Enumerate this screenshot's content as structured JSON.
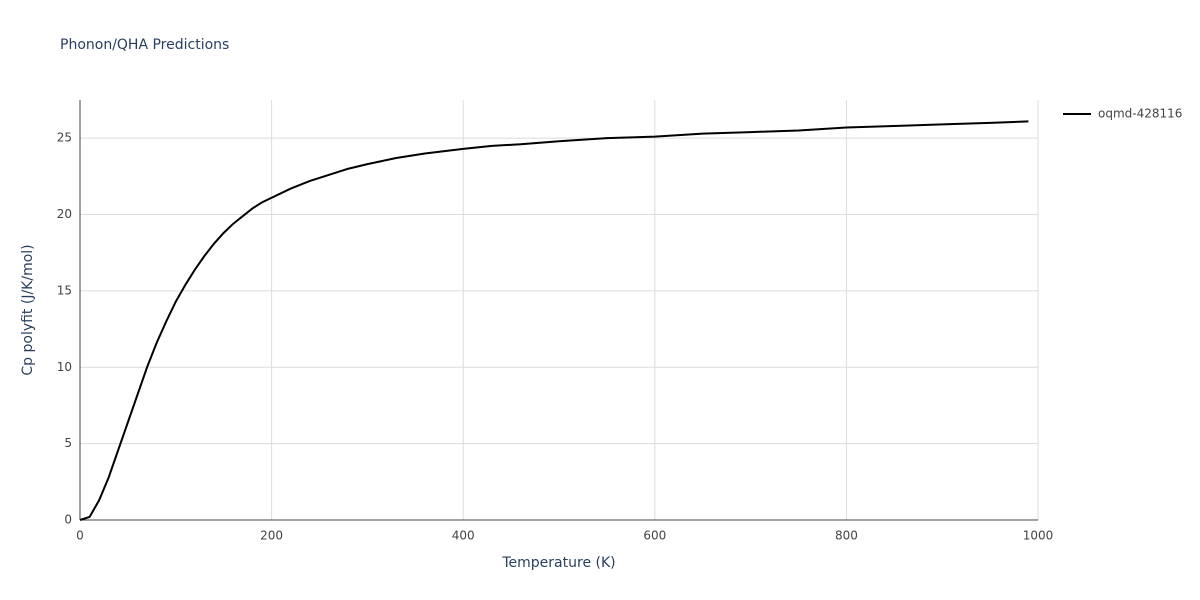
{
  "chart_data": {
    "type": "line",
    "title": "Phonon/QHA Predictions",
    "x_label": "Temperature (K)",
    "y_label": "Cp polyfit (J/K/mol)",
    "x": [
      0,
      10,
      20,
      30,
      40,
      50,
      60,
      70,
      80,
      90,
      100,
      110,
      120,
      130,
      140,
      150,
      160,
      170,
      180,
      190,
      200,
      220,
      240,
      260,
      280,
      300,
      330,
      360,
      400,
      430,
      460,
      500,
      550,
      600,
      650,
      700,
      750,
      800,
      850,
      900,
      950,
      990
    ],
    "series": [
      {
        "name": "oqmd-428116",
        "color": "#000000",
        "values": [
          0,
          0.2,
          1.3,
          2.8,
          4.6,
          6.4,
          8.2,
          10.0,
          11.6,
          13.0,
          14.3,
          15.4,
          16.4,
          17.3,
          18.1,
          18.8,
          19.4,
          19.9,
          20.4,
          20.8,
          21.1,
          21.7,
          22.2,
          22.6,
          23.0,
          23.3,
          23.7,
          24.0,
          24.3,
          24.5,
          24.6,
          24.8,
          25.0,
          25.1,
          25.3,
          25.4,
          25.5,
          25.7,
          25.8,
          25.9,
          26.0,
          26.1
        ]
      }
    ],
    "xlim": [
      0,
      1000
    ],
    "xticks": [
      0,
      200,
      400,
      600,
      800,
      1000
    ],
    "ylim": [
      0,
      27.5
    ],
    "yticks": [
      0,
      5,
      10,
      15,
      20,
      25
    ],
    "grid": true
  }
}
